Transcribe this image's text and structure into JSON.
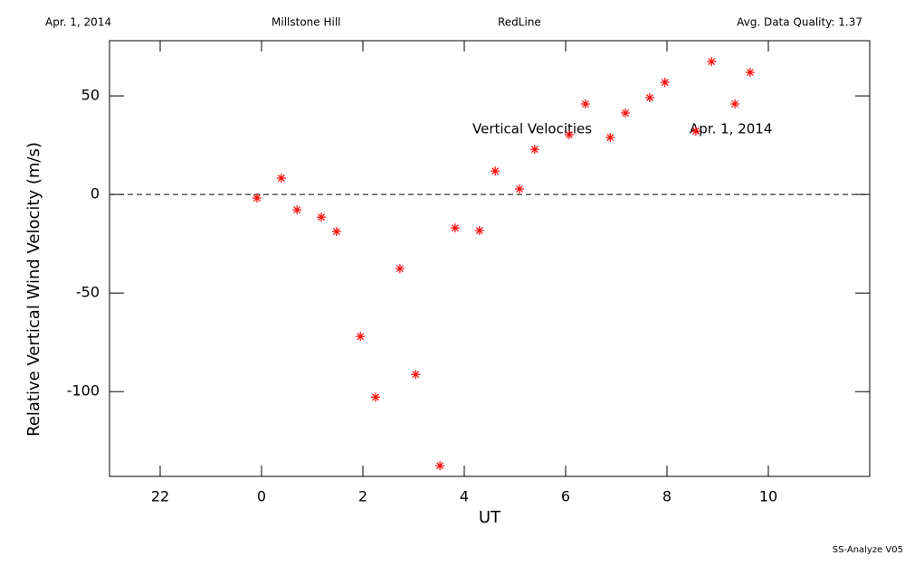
{
  "chart_data": {
    "type": "scatter",
    "header": [
      "Apr. 1, 2014",
      "Millstone Hill",
      "RedLine",
      "Avg. Data Quality: 1.37"
    ],
    "annotations": [
      "Vertical Velocities",
      "Apr. 1, 2014"
    ],
    "footer": "SS-Analyze V05",
    "x_label": "UT",
    "y_label": "Relative Vertical Wind Velocity (m/s)",
    "xlim": [
      -3,
      12
    ],
    "xticks": [
      {
        "value": -2,
        "label": "22"
      },
      0,
      2,
      4,
      6,
      8,
      10
    ],
    "ylim": [
      -143,
      78
    ],
    "yticks": [
      -100,
      -50,
      0,
      50
    ],
    "reference_line": 0,
    "series": [
      {
        "name": "Vertical Velocities",
        "color": "#ff0000",
        "x": [
          -0.09,
          0.39,
          0.7,
          1.18,
          1.48,
          1.95,
          2.25,
          2.73,
          3.04,
          3.52,
          3.82,
          4.3,
          4.61,
          5.09,
          5.39,
          6.07,
          6.39,
          6.88,
          7.18,
          7.66,
          7.96,
          8.57,
          8.88,
          9.34,
          9.64
        ],
        "values": [
          -1.8,
          8.3,
          -7.8,
          -11.5,
          -18.8,
          -72.0,
          -102.8,
          -37.6,
          -91.3,
          -137.6,
          -17.0,
          -18.3,
          11.9,
          2.8,
          22.9,
          30.3,
          45.9,
          28.9,
          41.3,
          49.1,
          56.9,
          32.1,
          67.4,
          45.9,
          61.9
        ]
      }
    ]
  }
}
